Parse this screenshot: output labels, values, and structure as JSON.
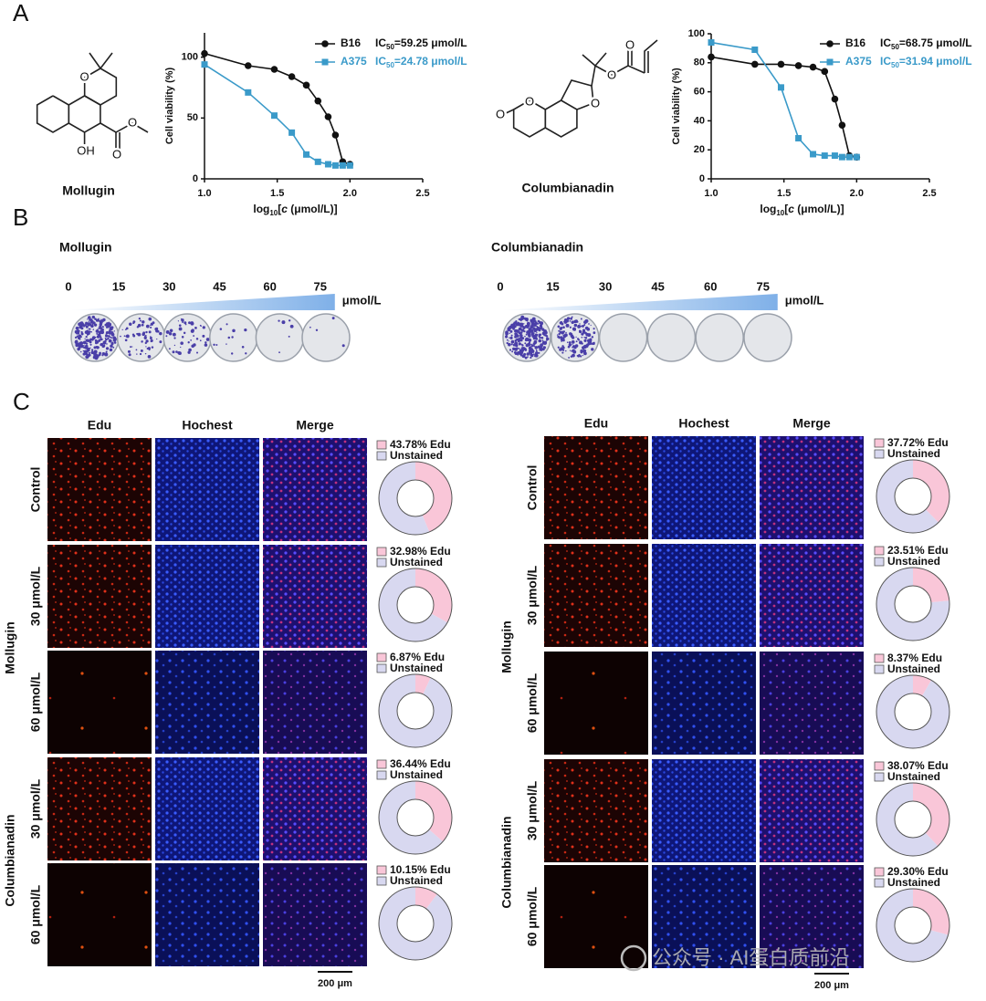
{
  "panels": {
    "a": "A",
    "b": "B",
    "c": "C"
  },
  "structures": [
    {
      "name": "Mollugin",
      "atoms": [
        "O",
        "OH",
        "O",
        "O"
      ]
    },
    {
      "name": "Columbianadin",
      "atoms": [
        "O",
        "O",
        "O",
        "O",
        "O"
      ]
    }
  ],
  "chart_data": [
    {
      "type": "line",
      "ylabel": "Cell viability (%)",
      "xlabel": [
        "log",
        "10",
        "[",
        "c",
        " (μmol/L)]"
      ],
      "x": [
        1.0,
        1.3,
        1.48,
        1.6,
        1.7,
        1.78,
        1.85,
        1.9,
        1.95,
        2.0
      ],
      "xlim": [
        1,
        2.5
      ],
      "xticks": [
        {
          "value": 1,
          "label": "1.0"
        },
        1.5,
        {
          "value": 2,
          "label": "2.0"
        },
        2.5
      ],
      "ylim": [
        0,
        120
      ],
      "yticks": [
        0,
        50,
        100
      ],
      "series": [
        {
          "name": "B16",
          "color": "#111111",
          "marker": "circle",
          "annotation": [
            "IC",
            "50",
            "=59.25 μmol/L"
          ],
          "values": [
            103,
            93,
            90,
            84,
            77,
            64,
            51,
            36,
            14,
            12
          ]
        },
        {
          "name": "A375",
          "color": "#3a9ac9",
          "marker": "square",
          "annotation": [
            "IC",
            "50",
            "=24.78 μmol/L"
          ],
          "values": [
            94,
            71,
            52,
            38,
            20,
            14,
            12,
            11,
            11,
            11
          ]
        }
      ]
    },
    {
      "type": "line",
      "ylabel": "Cell viability (%)",
      "xlabel": [
        "log",
        "10",
        "[",
        "c",
        " (μmol/L)]"
      ],
      "x": [
        1.0,
        1.3,
        1.48,
        1.6,
        1.7,
        1.78,
        1.85,
        1.9,
        1.95,
        2.0
      ],
      "xlim": [
        1,
        2.5
      ],
      "xticks": [
        {
          "value": 1,
          "label": "1.0"
        },
        1.5,
        {
          "value": 2,
          "label": "2.0"
        },
        2.5
      ],
      "ylim": [
        0,
        100
      ],
      "yticks": [
        0,
        20,
        40,
        60,
        80,
        100
      ],
      "series": [
        {
          "name": "B16",
          "color": "#111111",
          "marker": "circle",
          "annotation": [
            "IC",
            "50",
            "=68.75 μmol/L"
          ],
          "values": [
            84,
            79,
            79,
            78,
            77,
            74,
            55,
            37,
            16,
            15
          ]
        },
        {
          "name": "A375",
          "color": "#3a9ac9",
          "marker": "square",
          "annotation": [
            "IC",
            "50",
            "=31.94 μmol/L"
          ],
          "values": [
            94,
            89,
            63,
            28,
            17,
            16,
            16,
            15,
            15,
            15
          ]
        }
      ]
    },
    {
      "type": "pie",
      "categories": [
        "43.78% Edu",
        "Unstained"
      ],
      "values": [
        43.78,
        56.22
      ],
      "colors": [
        "#f9c6d8",
        "#d8d8f0"
      ]
    },
    {
      "type": "pie",
      "categories": [
        "32.98% Edu",
        "Unstained"
      ],
      "values": [
        32.98,
        67.02
      ],
      "colors": [
        "#f9c6d8",
        "#d8d8f0"
      ]
    },
    {
      "type": "pie",
      "categories": [
        "6.87% Edu",
        "Unstained"
      ],
      "values": [
        6.87,
        93.13
      ],
      "colors": [
        "#f9c6d8",
        "#d8d8f0"
      ]
    },
    {
      "type": "pie",
      "categories": [
        "36.44% Edu",
        "Unstained"
      ],
      "values": [
        36.44,
        63.56
      ],
      "colors": [
        "#f9c6d8",
        "#d8d8f0"
      ]
    },
    {
      "type": "pie",
      "categories": [
        "10.15% Edu",
        "Unstained"
      ],
      "values": [
        10.15,
        89.85
      ],
      "colors": [
        "#f9c6d8",
        "#d8d8f0"
      ]
    },
    {
      "type": "pie",
      "categories": [
        "37.72% Edu",
        "Unstained"
      ],
      "values": [
        37.72,
        62.28
      ],
      "colors": [
        "#f9c6d8",
        "#d8d8f0"
      ]
    },
    {
      "type": "pie",
      "categories": [
        "23.51% Edu",
        "Unstained"
      ],
      "values": [
        23.51,
        76.49
      ],
      "colors": [
        "#f9c6d8",
        "#d8d8f0"
      ]
    },
    {
      "type": "pie",
      "categories": [
        "8.37% Edu",
        "Unstained"
      ],
      "values": [
        8.37,
        91.63
      ],
      "colors": [
        "#f9c6d8",
        "#d8d8f0"
      ]
    },
    {
      "type": "pie",
      "categories": [
        "38.07% Edu",
        "Unstained"
      ],
      "values": [
        38.07,
        61.93
      ],
      "colors": [
        "#f9c6d8",
        "#d8d8f0"
      ]
    },
    {
      "type": "pie",
      "categories": [
        "29.30% Edu",
        "Unstained"
      ],
      "values": [
        29.3,
        70.7
      ],
      "colors": [
        "#f9c6d8",
        "#d8d8f0"
      ]
    }
  ],
  "colony": [
    {
      "title": "Mollugin",
      "doses": [
        0,
        15,
        30,
        45,
        60,
        75
      ],
      "unit": "μmol/L"
    },
    {
      "title": "Columbianadin",
      "doses": [
        0,
        15,
        30,
        45,
        60,
        75
      ],
      "unit": "μmol/L"
    }
  ],
  "edu": [
    {
      "columns": [
        "Edu",
        "Hochest",
        "Merge"
      ],
      "rows": [
        "Control",
        "30 μmol/L",
        "60 μmol/L",
        "30 μmol/L",
        "60 μmol/L"
      ],
      "groups": [
        "Mollugin",
        "Columbianadin"
      ],
      "scale": "200 μm"
    },
    {
      "columns": [
        "Edu",
        "Hochest",
        "Merge"
      ],
      "rows": [
        "Control",
        "30 μmol/L",
        "60 μmol/L",
        "30 μmol/L",
        "60 μmol/L"
      ],
      "groups": [
        "Mollugin",
        "Columbianadin"
      ],
      "scale": "200 μm"
    }
  ],
  "watermark": "公众号 · AI蛋白质前沿"
}
